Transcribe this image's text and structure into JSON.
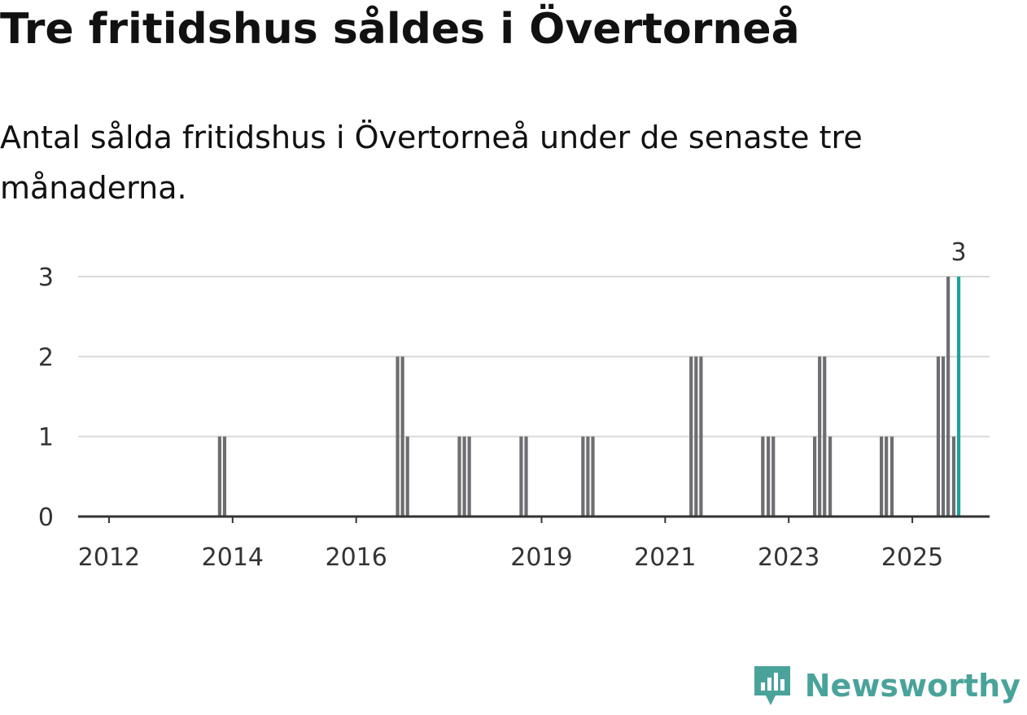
{
  "header": {
    "title": "Tre fritidshus såldes i Övertorneå",
    "subtitle": "Antal sålda fritidshus i Övertorneå under de senaste tre månaderna."
  },
  "brand": {
    "name": "Newsworthy",
    "icon": "newsworthy-logo-icon",
    "color": "#4aa39a"
  },
  "chart_data": {
    "type": "bar",
    "title": "Tre fritidshus såldes i Övertorneå",
    "xlabel": "",
    "ylabel": "",
    "xlim": [
      2011.5,
      2026.25
    ],
    "ylim": [
      0,
      3
    ],
    "y_ticks": [
      0,
      1,
      2,
      3
    ],
    "x_ticks": [
      2012,
      2014,
      2016,
      2019,
      2021,
      2023,
      2025
    ],
    "grid": true,
    "colors": {
      "bar": "#6e6e72",
      "highlight": "#1aa39a"
    },
    "series": [
      {
        "name": "Antal sålda fritidshus",
        "points": [
          {
            "t": 2013.79,
            "v": 1
          },
          {
            "t": 2013.87,
            "v": 1
          },
          {
            "t": 2016.67,
            "v": 2
          },
          {
            "t": 2016.75,
            "v": 2
          },
          {
            "t": 2016.83,
            "v": 1
          },
          {
            "t": 2017.67,
            "v": 1
          },
          {
            "t": 2017.75,
            "v": 1
          },
          {
            "t": 2017.83,
            "v": 1
          },
          {
            "t": 2018.67,
            "v": 1
          },
          {
            "t": 2018.75,
            "v": 1
          },
          {
            "t": 2019.67,
            "v": 1
          },
          {
            "t": 2019.75,
            "v": 1
          },
          {
            "t": 2019.83,
            "v": 1
          },
          {
            "t": 2021.42,
            "v": 2
          },
          {
            "t": 2021.5,
            "v": 2
          },
          {
            "t": 2021.58,
            "v": 2
          },
          {
            "t": 2022.58,
            "v": 1
          },
          {
            "t": 2022.67,
            "v": 1
          },
          {
            "t": 2022.75,
            "v": 1
          },
          {
            "t": 2023.42,
            "v": 1
          },
          {
            "t": 2023.5,
            "v": 2
          },
          {
            "t": 2023.58,
            "v": 2
          },
          {
            "t": 2023.67,
            "v": 1
          },
          {
            "t": 2024.5,
            "v": 1
          },
          {
            "t": 2024.58,
            "v": 1
          },
          {
            "t": 2024.67,
            "v": 1
          },
          {
            "t": 2025.42,
            "v": 2
          },
          {
            "t": 2025.5,
            "v": 2
          },
          {
            "t": 2025.58,
            "v": 3
          },
          {
            "t": 2025.67,
            "v": 1
          }
        ]
      }
    ],
    "highlight": {
      "t": 2025.75,
      "v": 3,
      "label": "3"
    }
  }
}
